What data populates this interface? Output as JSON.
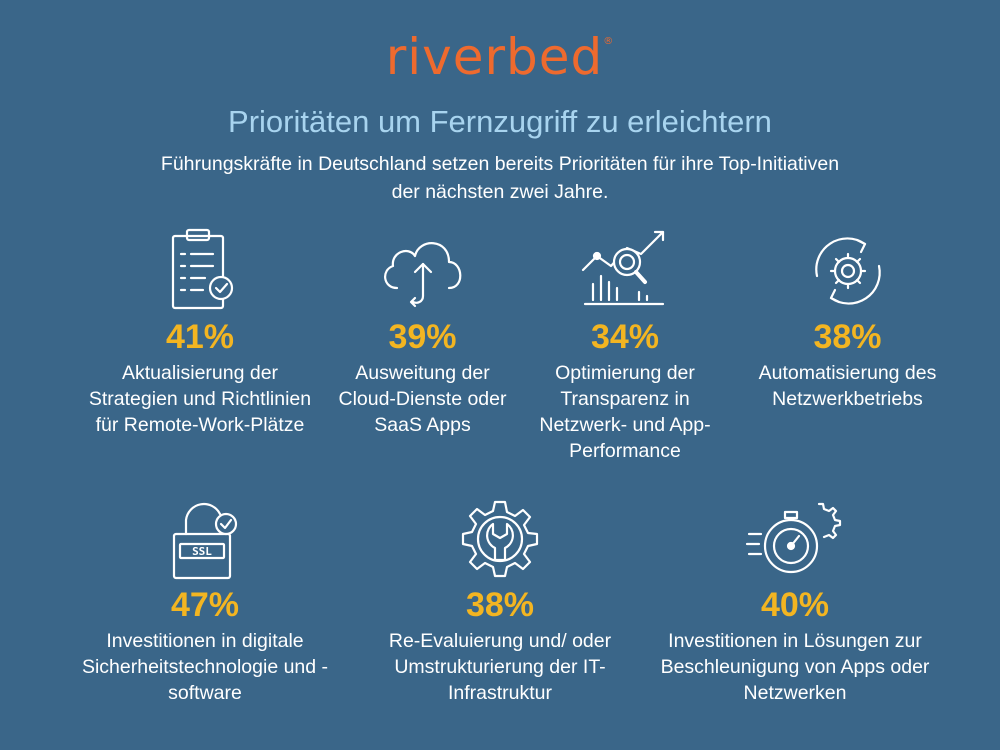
{
  "logo": {
    "text": "riverbed",
    "mark": "®"
  },
  "title": "Prioritäten um Fernzugriff zu erleichtern",
  "subtitle": "Führungskräfte in Deutschland setzen bereits Prioritäten für ihre Top-Initiativen der nächsten zwei Jahre.",
  "colors": {
    "background": "#3a6689",
    "logo": "#ee6a2e",
    "title": "#a8d4ef",
    "percent": "#f3b521"
  },
  "items": [
    {
      "icon": "clipboard-check-icon",
      "percent": "41%",
      "label": "Aktualisierung der Strategien und Richtlinien für Remote-Work-Plätze"
    },
    {
      "icon": "cloud-sync-icon",
      "percent": "39%",
      "label": "Ausweitung der Cloud-Dienste oder SaaS Apps"
    },
    {
      "icon": "analytics-magnifier-icon",
      "percent": "34%",
      "label": "Optimierung der Transparenz in Netzwerk- und App-Performance"
    },
    {
      "icon": "gear-cycle-icon",
      "percent": "38%",
      "label": "Automatisierung des Netzwerkbetriebs"
    },
    {
      "icon": "ssl-lock-icon",
      "percent": "47%",
      "label": "Investitionen in digitale Sicherheitstechnologie und -software"
    },
    {
      "icon": "gear-wrench-icon",
      "percent": "38%",
      "label": "Re-Evaluierung und/ oder Umstrukturierung der IT-Infrastruktur"
    },
    {
      "icon": "stopwatch-speed-icon",
      "percent": "40%",
      "label": "Investitionen in Lösungen zur Beschleunigung von Apps oder Netzwerken"
    }
  ],
  "ssl_text": "SSL"
}
